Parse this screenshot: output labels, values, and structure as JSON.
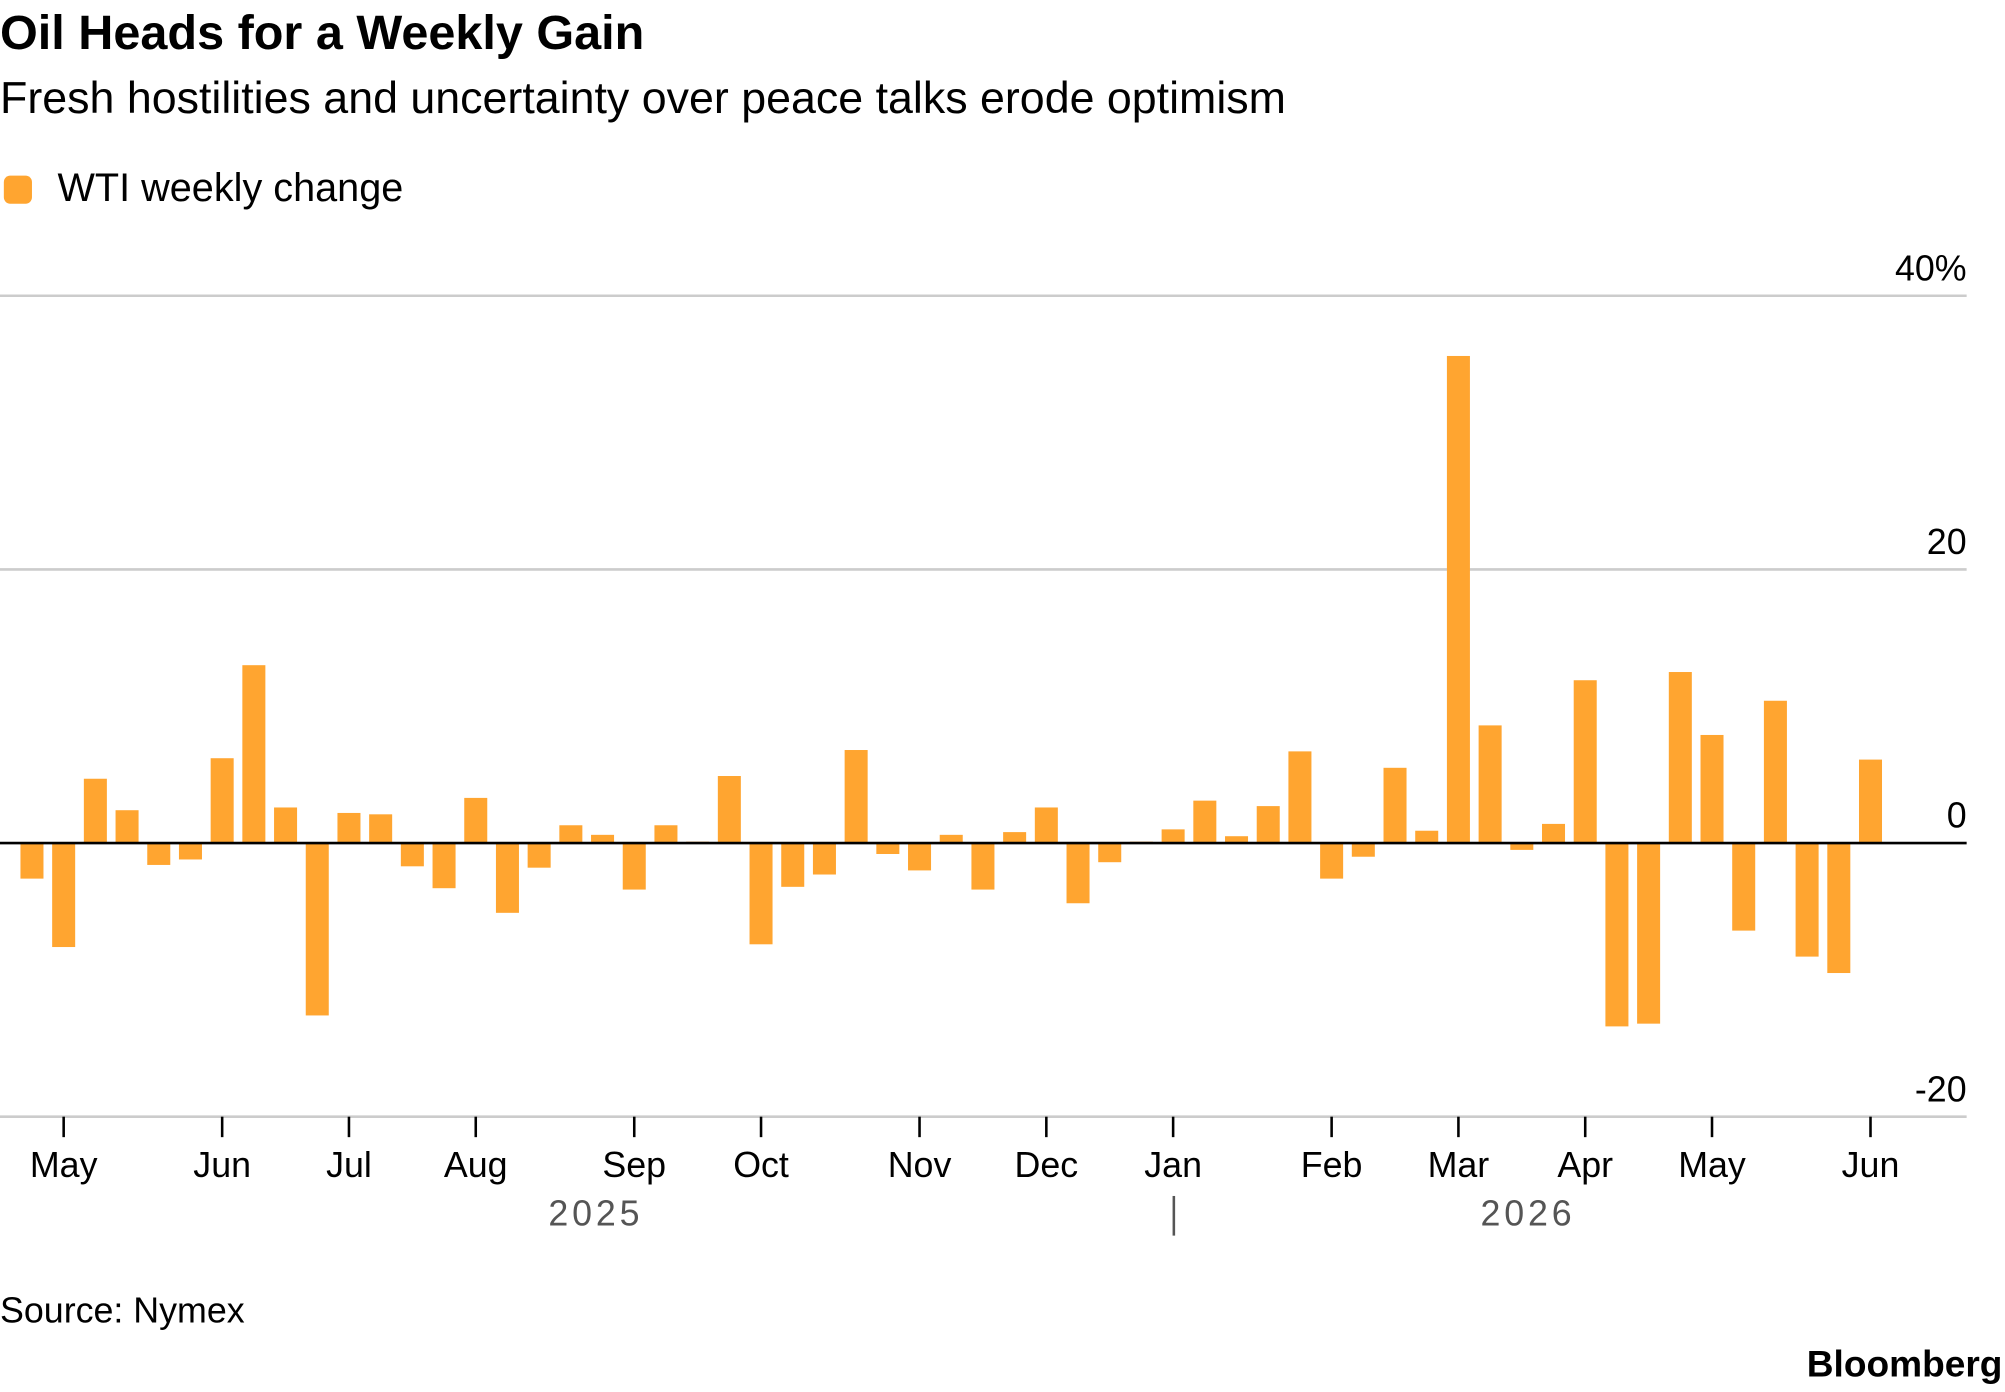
{
  "chart_data": {
    "type": "bar",
    "title": "Oil Heads for a Weekly Gain",
    "subtitle": "Fresh hostilities and uncertainty over peace talks erode optimism",
    "source": "Source: Nymex",
    "brand": "Bloomberg",
    "years": [
      "2025",
      "2026"
    ],
    "categories": [
      null,
      "May",
      null,
      null,
      null,
      null,
      "Jun",
      null,
      null,
      null,
      "Jul",
      null,
      null,
      null,
      "Aug",
      null,
      null,
      null,
      null,
      "Sep",
      null,
      null,
      null,
      "Oct",
      null,
      null,
      null,
      null,
      "Nov",
      null,
      null,
      null,
      "Dec",
      null,
      null,
      null,
      "Jan",
      null,
      null,
      null,
      null,
      "Feb",
      null,
      null,
      null,
      "Mar",
      null,
      null,
      null,
      "Apr",
      null,
      null,
      null,
      "May",
      null,
      null,
      null,
      null,
      "Jun"
    ],
    "series": [
      {
        "name": "WTI weekly change",
        "color": "#ffa530",
        "values": [
          -2.6,
          -7.6,
          4.7,
          2.4,
          -1.6,
          -1.2,
          6.2,
          13.0,
          2.6,
          -12.6,
          2.2,
          2.1,
          -1.7,
          -3.3,
          3.3,
          -5.1,
          -1.8,
          1.3,
          0.6,
          -3.4,
          1.3,
          0.1,
          4.9,
          -7.4,
          -3.2,
          -2.3,
          6.8,
          -0.8,
          -2.0,
          0.6,
          -3.4,
          0.8,
          2.6,
          -4.4,
          -1.4,
          0.1,
          1.0,
          3.1,
          0.5,
          2.7,
          6.7,
          -2.6,
          -1.0,
          5.5,
          0.9,
          35.6,
          8.6,
          -0.5,
          1.4,
          11.9,
          -13.4,
          -13.2,
          12.5,
          7.9,
          -6.4,
          10.4,
          -8.3,
          -9.5,
          6.1
        ]
      }
    ],
    "ylim": [
      -20,
      40
    ],
    "yticks": [
      -20,
      0,
      20,
      {
        "value": 40,
        "label": "40%"
      }
    ],
    "grid": true
  }
}
